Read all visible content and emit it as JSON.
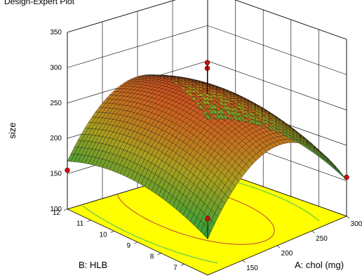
{
  "chart_data": {
    "type": "surface3d",
    "title": "Design-Expert Plot",
    "zlabel": "size",
    "xlabel": "A: chol (mg)",
    "ylabel": "B: HLB",
    "x_ticks": [
      150,
      200,
      250,
      300
    ],
    "y_ticks": [
      7,
      8,
      9,
      10,
      11,
      12
    ],
    "z_ticks": [
      100,
      150,
      200,
      250,
      300,
      350
    ],
    "x_range": [
      100,
      300
    ],
    "y_range": [
      6,
      12
    ],
    "z_range": [
      100,
      350
    ],
    "surface_model": {
      "peak_x": 200,
      "peak_y": 9.5,
      "peak_z": 275,
      "x_curvature": 90,
      "y_curvature": 25,
      "interaction": 0
    },
    "design_points": [
      {
        "x": 200,
        "y": 9,
        "z": 310
      },
      {
        "x": 200,
        "y": 9,
        "z": 318
      },
      {
        "x": 300,
        "y": 6,
        "z": 155
      },
      {
        "x": 100,
        "y": 12,
        "z": 155
      },
      {
        "x": 100,
        "y": 6,
        "z": 180
      }
    ],
    "contour_levels": [
      150,
      200,
      250
    ],
    "floor_color": "#ffff00",
    "grid": true
  }
}
